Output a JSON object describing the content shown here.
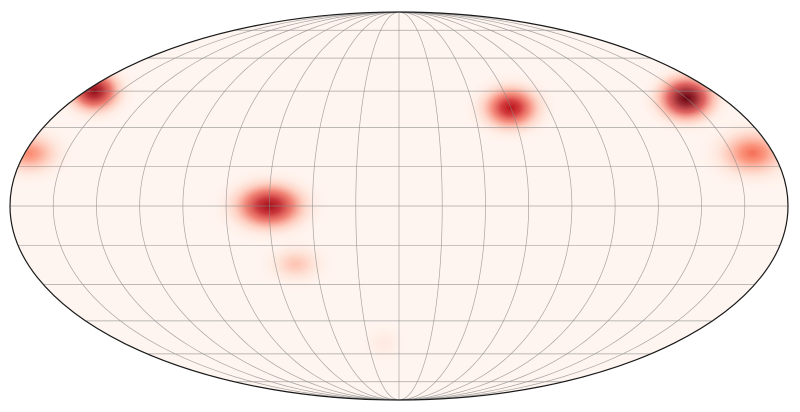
{
  "map": {
    "projection": "mollweide",
    "graticule": {
      "meridian_step_deg": 20,
      "parallel_step_deg": 15,
      "color": "#8a8a8a"
    },
    "outline_color": "#1a1a1a",
    "colormap": [
      "#fff5f0",
      "#fcbba1",
      "#fb6a4a",
      "#cb181d",
      "#67000d"
    ],
    "hotspots": [
      {
        "name": "central-left-blob",
        "lon": -60,
        "lat": 0,
        "intensity": 0.85,
        "spread_deg": 17
      },
      {
        "name": "central-left-blob-tail",
        "lon": -50,
        "lat": -22,
        "intensity": 0.35,
        "spread_deg": 14
      },
      {
        "name": "north-center-right-blob",
        "lon": 60,
        "lat": 38,
        "intensity": 0.8,
        "spread_deg": 16
      },
      {
        "name": "north-east-edge-blob",
        "lon": 160,
        "lat": 42,
        "intensity": 1.0,
        "spread_deg": 16
      },
      {
        "name": "east-edge-band",
        "lon": 170,
        "lat": 20,
        "intensity": 0.55,
        "spread_deg": 18
      },
      {
        "name": "north-west-edge-blob",
        "lon": -175,
        "lat": 45,
        "intensity": 0.9,
        "spread_deg": 15
      },
      {
        "name": "west-edge-band",
        "lon": -178,
        "lat": 20,
        "intensity": 0.5,
        "spread_deg": 16
      },
      {
        "name": "south-faint-blob",
        "lon": -10,
        "lat": -55,
        "intensity": 0.18,
        "spread_deg": 14
      }
    ]
  }
}
